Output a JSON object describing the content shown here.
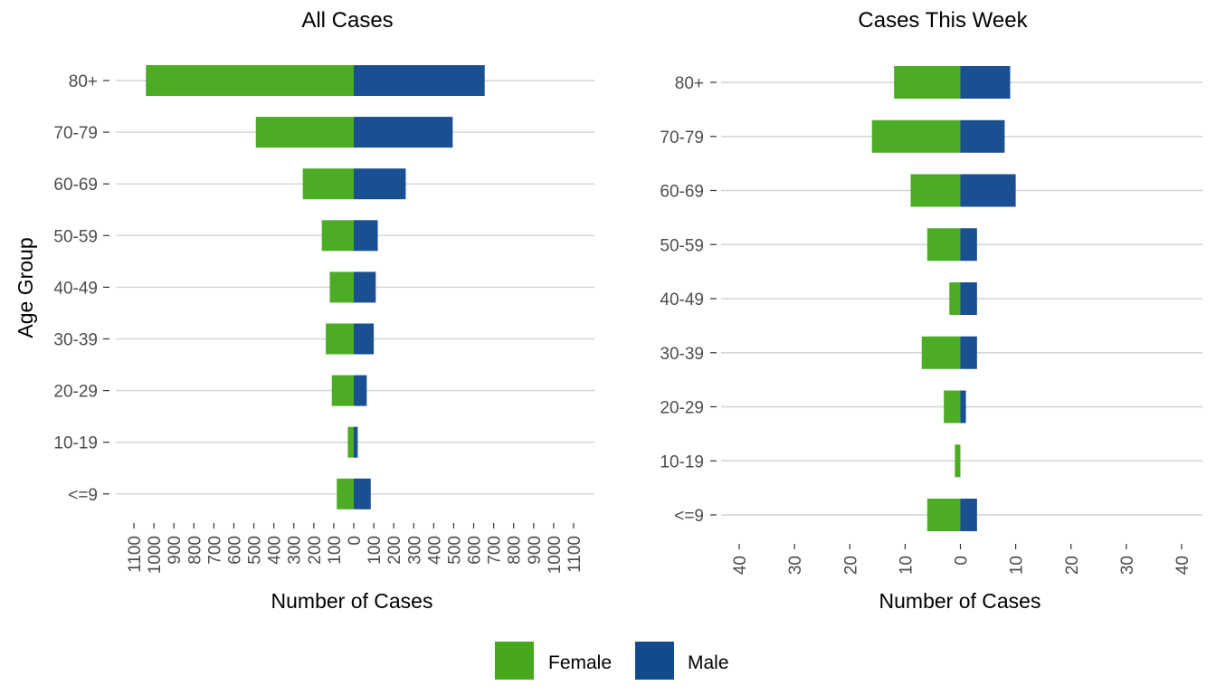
{
  "colors": {
    "female": "#4dac26",
    "male": "#1a4f91",
    "female_key": "#47a81d",
    "male_key": "#134a8e",
    "grid": "#d4d4d4",
    "tick_text": "#4d4d4d"
  },
  "legend": {
    "items": [
      {
        "label": "Female",
        "color": "#47a81d"
      },
      {
        "label": "Male",
        "color": "#134a8e"
      }
    ]
  },
  "chart_data": [
    {
      "type": "bar",
      "orientation": "horizontal",
      "layout": "population-pyramid",
      "title": "All Cases",
      "xlabel": "Number of Cases",
      "ylabel": "Age Group",
      "categories": [
        "80+",
        "70-79",
        "60-69",
        "50-59",
        "40-49",
        "30-39",
        "20-29",
        "10-19",
        "<=9"
      ],
      "series": [
        {
          "name": "Female",
          "side": "left",
          "values": [
            1040,
            490,
            255,
            160,
            120,
            140,
            110,
            30,
            85
          ]
        },
        {
          "name": "Male",
          "side": "right",
          "values": [
            655,
            495,
            260,
            120,
            110,
            100,
            65,
            20,
            85
          ]
        }
      ],
      "xlim": [
        -1100,
        1100
      ],
      "xticks": [
        -1100,
        -1000,
        -900,
        -800,
        -700,
        -600,
        -500,
        -400,
        -300,
        -200,
        -100,
        0,
        100,
        200,
        300,
        400,
        500,
        600,
        700,
        800,
        900,
        1000,
        1100
      ],
      "xtick_labels": [
        "1100",
        "1000",
        "900",
        "800",
        "700",
        "600",
        "500",
        "400",
        "300",
        "200",
        "100",
        "0",
        "100",
        "200",
        "300",
        "400",
        "500",
        "600",
        "700",
        "800",
        "900",
        "1000",
        "1100"
      ],
      "grid": "horizontal",
      "legend": "bottom"
    },
    {
      "type": "bar",
      "orientation": "horizontal",
      "layout": "population-pyramid",
      "title": "Cases This Week",
      "xlabel": "Number of Cases",
      "ylabel": "",
      "categories": [
        "80+",
        "70-79",
        "60-69",
        "50-59",
        "40-49",
        "30-39",
        "20-29",
        "10-19",
        "<=9"
      ],
      "series": [
        {
          "name": "Female",
          "side": "left",
          "values": [
            12,
            16,
            9,
            6,
            2,
            7,
            3,
            1,
            6
          ]
        },
        {
          "name": "Male",
          "side": "right",
          "values": [
            9,
            8,
            10,
            3,
            3,
            3,
            1,
            0,
            3
          ]
        }
      ],
      "xlim": [
        -40,
        40
      ],
      "xticks": [
        -40,
        -30,
        -20,
        -10,
        0,
        10,
        20,
        30,
        40
      ],
      "xtick_labels": [
        "40",
        "30",
        "20",
        "10",
        "0",
        "10",
        "20",
        "30",
        "40"
      ],
      "grid": "horizontal",
      "legend": "bottom"
    }
  ]
}
